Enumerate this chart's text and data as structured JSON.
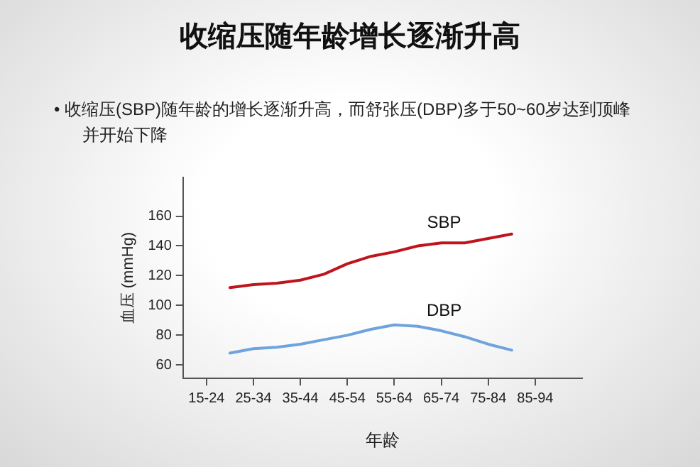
{
  "chart_data": {
    "type": "line",
    "title": "收缩压随年龄增长逐渐升高",
    "subtitle": "• 收缩压(SBP)随年龄的增长逐渐升高，而舒张压(DBP)多于50~60岁达到顶峰并开始下降",
    "xlabel": "年龄",
    "ylabel": "血压 (mmHg)",
    "categories": [
      null,
      "15-24",
      null,
      "25-34",
      null,
      "35-44",
      null,
      "45-54",
      null,
      "55-64",
      null,
      "65-74",
      null,
      "75-84",
      null,
      "85-94",
      null,
      null
    ],
    "ylim": [
      51,
      186
    ],
    "yticks": [
      60,
      80,
      100,
      120,
      140,
      160
    ],
    "grid": false,
    "legend": false,
    "marker": "none",
    "line_style": "solid",
    "series": [
      {
        "name": "SBP",
        "color": "#c0141c",
        "values": [
          null,
          null,
          112,
          114,
          115,
          117,
          121,
          128,
          133,
          136,
          140,
          142,
          142,
          145,
          148,
          null,
          null,
          null
        ]
      },
      {
        "name": "DBP",
        "color": "#6ea3dc",
        "values": [
          null,
          null,
          68,
          71,
          72,
          74,
          77,
          80,
          84,
          87,
          86,
          83,
          79,
          74,
          70,
          null,
          null,
          null
        ]
      }
    ]
  }
}
